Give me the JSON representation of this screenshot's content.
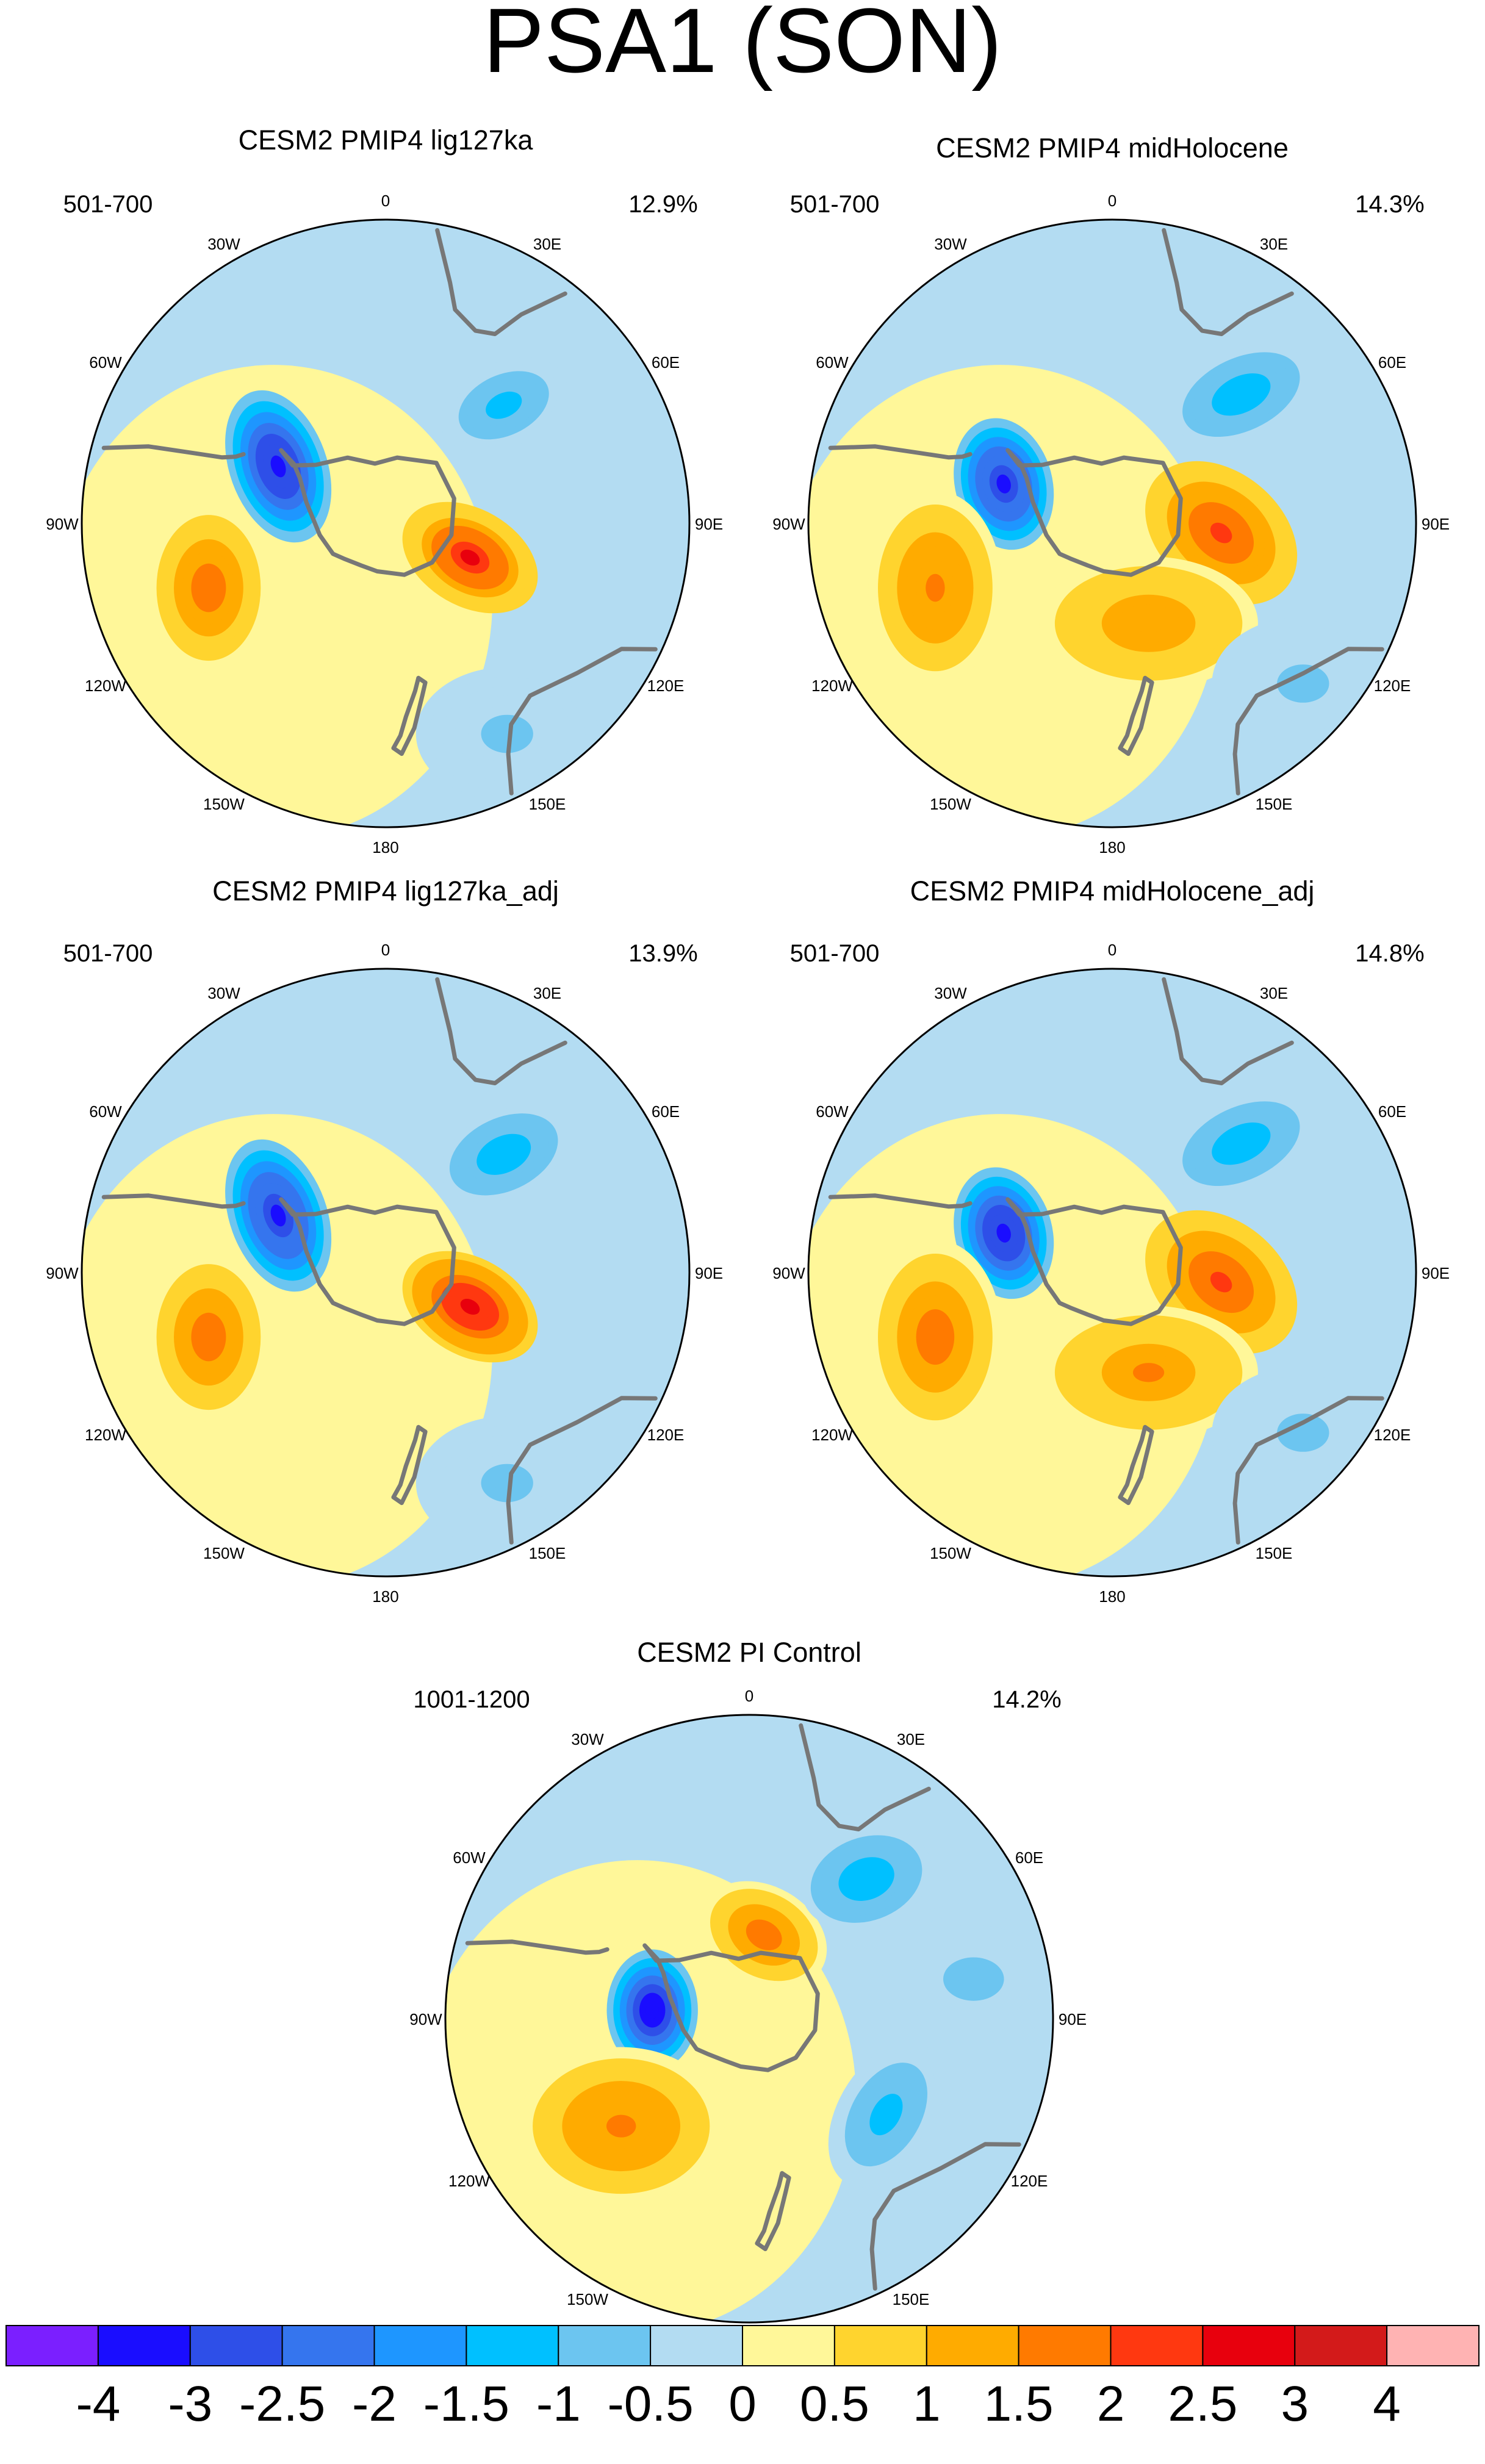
{
  "title": "PSA1 (SON)",
  "panels": [
    {
      "title": "CESM2 PMIP4 lig127ka",
      "years": "501-700",
      "variance": "12.9%",
      "anomalies": [
        {
          "lon": -62,
          "r": 0.4,
          "w": 0.16,
          "h": 0.26,
          "rot": -20,
          "amp": -3.4
        },
        {
          "lon": 112,
          "r": 0.3,
          "w": 0.24,
          "h": 0.16,
          "rot": 30,
          "amp": 2.6
        },
        {
          "lon": -110,
          "r": 0.62,
          "w": 0.2,
          "h": 0.28,
          "rot": 0,
          "amp": 1.9
        },
        {
          "lon": 45,
          "r": 0.55,
          "w": 0.22,
          "h": 0.14,
          "rot": -25,
          "amp": -1.3
        },
        {
          "lon": 150,
          "r": 0.8,
          "w": 0.3,
          "h": 0.22,
          "rot": 0,
          "amp": -0.6
        }
      ]
    },
    {
      "title": "CESM2 PMIP4 midHolocene",
      "years": "501-700",
      "variance": "14.3%",
      "anomalies": [
        {
          "lon": -70,
          "r": 0.38,
          "w": 0.16,
          "h": 0.22,
          "rot": -15,
          "amp": -3.3
        },
        {
          "lon": 95,
          "r": 0.36,
          "w": 0.28,
          "h": 0.2,
          "rot": 40,
          "amp": 2.1
        },
        {
          "lon": -110,
          "r": 0.62,
          "w": 0.22,
          "h": 0.32,
          "rot": 0,
          "amp": 1.7
        },
        {
          "lon": 45,
          "r": 0.6,
          "w": 0.24,
          "h": 0.14,
          "rot": -25,
          "amp": -1.4
        },
        {
          "lon": 160,
          "r": 0.35,
          "w": 0.36,
          "h": 0.22,
          "rot": 0,
          "amp": 1.4
        },
        {
          "lon": 130,
          "r": 0.82,
          "w": 0.3,
          "h": 0.22,
          "rot": 0,
          "amp": -0.6
        }
      ]
    },
    {
      "title": "CESM2 PMIP4 lig127ka_adj",
      "years": "501-700",
      "variance": "13.9%",
      "anomalies": [
        {
          "lon": -62,
          "r": 0.4,
          "w": 0.16,
          "h": 0.26,
          "rot": -20,
          "amp": -3.3
        },
        {
          "lon": 112,
          "r": 0.3,
          "w": 0.24,
          "h": 0.16,
          "rot": 30,
          "amp": 2.8
        },
        {
          "lon": -110,
          "r": 0.62,
          "w": 0.2,
          "h": 0.28,
          "rot": 0,
          "amp": 1.9
        },
        {
          "lon": 45,
          "r": 0.55,
          "w": 0.22,
          "h": 0.14,
          "rot": -25,
          "amp": -1.4
        },
        {
          "lon": 150,
          "r": 0.8,
          "w": 0.3,
          "h": 0.22,
          "rot": 0,
          "amp": -0.6
        }
      ]
    },
    {
      "title": "CESM2 PMIP4 midHolocene_adj",
      "years": "501-700",
      "variance": "14.8%",
      "anomalies": [
        {
          "lon": -70,
          "r": 0.38,
          "w": 0.16,
          "h": 0.22,
          "rot": -15,
          "amp": -3.4
        },
        {
          "lon": 95,
          "r": 0.36,
          "w": 0.28,
          "h": 0.2,
          "rot": 40,
          "amp": 2.2
        },
        {
          "lon": -110,
          "r": 0.62,
          "w": 0.22,
          "h": 0.32,
          "rot": 0,
          "amp": 1.8
        },
        {
          "lon": 45,
          "r": 0.6,
          "w": 0.24,
          "h": 0.14,
          "rot": -25,
          "amp": -1.4
        },
        {
          "lon": 160,
          "r": 0.35,
          "w": 0.36,
          "h": 0.22,
          "rot": 0,
          "amp": 1.5
        },
        {
          "lon": 130,
          "r": 0.82,
          "w": 0.3,
          "h": 0.22,
          "rot": 0,
          "amp": -0.6
        }
      ]
    },
    {
      "title": "CESM2 PI Control",
      "years": "1001-1200",
      "variance": "14.2%",
      "anomalies": [
        {
          "lon": -85,
          "r": 0.32,
          "w": 0.15,
          "h": 0.2,
          "rot": 0,
          "amp": -3.6
        },
        {
          "lon": 10,
          "r": 0.28,
          "w": 0.22,
          "h": 0.16,
          "rot": 30,
          "amp": 1.8
        },
        {
          "lon": -130,
          "r": 0.55,
          "w": 0.34,
          "h": 0.26,
          "rot": 0,
          "amp": 1.6
        },
        {
          "lon": 40,
          "r": 0.6,
          "w": 0.22,
          "h": 0.16,
          "rot": -20,
          "amp": -1.4
        },
        {
          "lon": 125,
          "r": 0.55,
          "w": 0.16,
          "h": 0.26,
          "rot": 30,
          "amp": -1.3
        },
        {
          "lon": 80,
          "r": 0.75,
          "w": 0.35,
          "h": 0.25,
          "rot": 0,
          "amp": -0.6
        }
      ]
    }
  ],
  "longitude_labels": [
    {
      "lon": 0,
      "label": "0"
    },
    {
      "lon": 30,
      "label": "30E"
    },
    {
      "lon": 60,
      "label": "60E"
    },
    {
      "lon": 90,
      "label": "90E"
    },
    {
      "lon": 120,
      "label": "120E"
    },
    {
      "lon": 150,
      "label": "150E"
    },
    {
      "lon": 180,
      "label": "180"
    },
    {
      "lon": -150,
      "label": "150W"
    },
    {
      "lon": -120,
      "label": "120W"
    },
    {
      "lon": -90,
      "label": "90W"
    },
    {
      "lon": -60,
      "label": "60W"
    },
    {
      "lon": -30,
      "label": "30W"
    }
  ],
  "colorbar": {
    "labels": [
      "-4",
      "-3",
      "-2.5",
      "-2",
      "-1.5",
      "-1",
      "-0.5",
      "0",
      "0.5",
      "1",
      "1.5",
      "2",
      "2.5",
      "3",
      "4"
    ],
    "levels": [
      -4,
      -3,
      -2.5,
      -2,
      -1.5,
      -1,
      -0.5,
      0,
      0.5,
      1,
      1.5,
      2,
      2.5,
      3,
      4
    ],
    "colors": [
      "#7b1fff",
      "#1a0dff",
      "#2e4fe8",
      "#3575ee",
      "#1e96ff",
      "#00c0ff",
      "#6cc5f0",
      "#b3dcf2",
      "#fff799",
      "#ffd42e",
      "#ffab00",
      "#ff7a00",
      "#ff3810",
      "#e8000d",
      "#d31a1a",
      "#ffb3b3"
    ]
  },
  "coastline_color": "#777777"
}
